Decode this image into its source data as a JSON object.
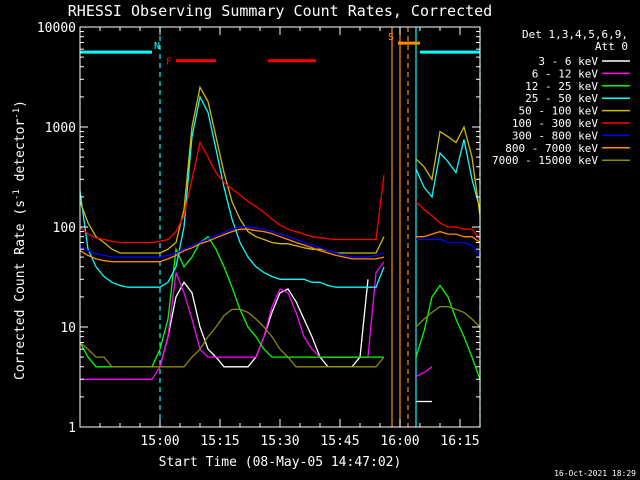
{
  "chart_data": {
    "type": "line",
    "title": "RHESSI Observing Summary Count Rates, Corrected",
    "xlabel": "Start Time (08-May-05 14:47:02)",
    "ylabel_main": "Corrected Count Rate (s",
    "ylabel_sup1": "-1",
    "ylabel_mid": " detector",
    "ylabel_sup2": "-1",
    "ylabel_end": ")",
    "yscale": "log",
    "ylim": [
      1,
      10000
    ],
    "xlim_min": [
      -10,
      90
    ],
    "x_unit": "minutes after 14:50",
    "xticks": [
      {
        "x": 10,
        "label": "15:00"
      },
      {
        "x": 25,
        "label": "15:15"
      },
      {
        "x": 40,
        "label": "15:30"
      },
      {
        "x": 55,
        "label": "15:45"
      },
      {
        "x": 70,
        "label": "16:00"
      },
      {
        "x": 85,
        "label": "16:15"
      }
    ],
    "yticks": [
      {
        "y": 1,
        "label": "1"
      },
      {
        "y": 10,
        "label": "10"
      },
      {
        "y": 100,
        "label": "100"
      },
      {
        "y": 1000,
        "label": "1000"
      },
      {
        "y": 10000,
        "label": "10000"
      }
    ],
    "legend_header": [
      "Det 1,3,4,5,6,9,",
      "Att 0"
    ],
    "legend_placement": "top-right outside",
    "footer_date": "16-Oct-2021 18:29",
    "flags": [
      {
        "name": "N",
        "color": "#00ffff",
        "label": "N",
        "segments": [
          [
            -10,
            8
          ],
          [
            75,
            90
          ]
        ],
        "y": 5600
      },
      {
        "name": "F",
        "color": "#ff0000",
        "label": "F",
        "segments": [
          [
            14,
            24
          ],
          [
            37,
            49
          ]
        ],
        "y": 4600
      },
      {
        "name": "S",
        "color": "#ff8c00",
        "label": "S",
        "segments": [
          [
            69.5,
            75
          ]
        ],
        "y": 6900
      }
    ],
    "vlines": [
      {
        "x": 10,
        "color": "#00ffff",
        "style": "dashed"
      },
      {
        "x": 68,
        "color": "#ff8c00",
        "style": "solid"
      },
      {
        "x": 70,
        "color": "#ff8c00",
        "style": "solid"
      },
      {
        "x": 72,
        "color": "#ff8c00",
        "style": "dashed"
      },
      {
        "x": 74,
        "color": "#00ffff",
        "style": "solid"
      },
      {
        "x": 90,
        "color": "#00ffff",
        "style": "dashed"
      }
    ],
    "series": [
      {
        "name": "3 - 6 keV",
        "color": "#ffffff",
        "x": [
          74,
          76,
          78
        ],
        "y": [
          1.8,
          1.8,
          1.8
        ],
        "x2": [
          10,
          12,
          14,
          16,
          18,
          20,
          22,
          24,
          26,
          28,
          30,
          32,
          34,
          36,
          38,
          40,
          42,
          44,
          46,
          48,
          50,
          52,
          54,
          56,
          58,
          60,
          62,
          64,
          66
        ],
        "y2": [
          4,
          8,
          20,
          28,
          22,
          10,
          6,
          5,
          4,
          4,
          4,
          4,
          5,
          8,
          14,
          22,
          24,
          18,
          12,
          8,
          5,
          4,
          4,
          4,
          4,
          5,
          30,
          0,
          0
        ]
      },
      {
        "name": "6 - 12 keV",
        "color": "#ff00ff",
        "x": [
          -10,
          -8,
          -6,
          -4,
          -2,
          0,
          2,
          4,
          6,
          8,
          10,
          12,
          14,
          16,
          18,
          20,
          22,
          24,
          26,
          28,
          30,
          32,
          34,
          36,
          38,
          40,
          42,
          44,
          46,
          48,
          50,
          52,
          54,
          56,
          58,
          60,
          62,
          64,
          66
        ],
        "y": [
          3,
          3,
          3,
          3,
          3,
          3,
          3,
          3,
          3,
          3,
          4,
          8,
          35,
          22,
          12,
          6,
          5,
          5,
          5,
          5,
          5,
          5,
          5,
          8,
          16,
          24,
          22,
          14,
          8,
          6,
          5,
          5,
          5,
          5,
          5,
          5,
          5,
          35,
          45
        ],
        "x2": [
          74,
          76,
          78
        ],
        "y2": [
          3.2,
          3.5,
          4
        ]
      },
      {
        "name": "12 - 25 keV",
        "color": "#00ff00",
        "x": [
          -10,
          -8,
          -6,
          -4,
          -2,
          0,
          2,
          4,
          6,
          8,
          10,
          12,
          14,
          16,
          18,
          20,
          22,
          24,
          26,
          28,
          30,
          32,
          34,
          36,
          38,
          40,
          42,
          44,
          46,
          48,
          50,
          52,
          54,
          56,
          58,
          60,
          62,
          64,
          66
        ],
        "y": [
          7,
          5,
          4,
          4,
          4,
          4,
          4,
          4,
          4,
          4,
          6,
          12,
          60,
          40,
          50,
          70,
          80,
          60,
          40,
          25,
          15,
          10,
          8,
          6,
          5,
          5,
          5,
          5,
          5,
          5,
          5,
          5,
          5,
          5,
          5,
          5,
          5,
          5,
          5
        ],
        "x2": [
          74,
          76,
          78,
          80,
          82,
          84,
          86,
          88,
          90
        ],
        "y2": [
          5,
          9,
          20,
          26,
          20,
          12,
          8,
          5,
          3
        ]
      },
      {
        "name": "25 - 50 keV",
        "color": "#00ffff",
        "x": [
          -10,
          -8,
          -6,
          -4,
          -2,
          0,
          2,
          4,
          6,
          8,
          10,
          12,
          14,
          16,
          18,
          20,
          22,
          24,
          26,
          28,
          30,
          32,
          34,
          36,
          38,
          40,
          42,
          44,
          46,
          48,
          50,
          52,
          54,
          56,
          58,
          60,
          62,
          64,
          66
        ],
        "y": [
          230,
          60,
          40,
          32,
          28,
          26,
          25,
          25,
          25,
          25,
          25,
          28,
          40,
          100,
          800,
          2000,
          1400,
          600,
          250,
          120,
          70,
          50,
          40,
          35,
          32,
          30,
          30,
          30,
          30,
          28,
          28,
          26,
          25,
          25,
          25,
          25,
          25,
          25,
          40
        ],
        "x2": [
          74,
          76,
          78,
          80,
          82,
          84,
          86,
          88,
          90
        ],
        "y2": [
          380,
          250,
          200,
          550,
          450,
          350,
          750,
          300,
          150
        ]
      },
      {
        "name": "50 - 100 keV",
        "color": "#ccbb00",
        "x": [
          -10,
          -8,
          -6,
          -4,
          -2,
          0,
          2,
          4,
          6,
          8,
          10,
          12,
          14,
          16,
          18,
          20,
          22,
          24,
          26,
          28,
          30,
          32,
          34,
          36,
          38,
          40,
          42,
          44,
          46,
          48,
          50,
          52,
          54,
          56,
          58,
          60,
          62,
          64,
          66
        ],
        "y": [
          180,
          110,
          80,
          70,
          60,
          55,
          55,
          55,
          55,
          55,
          55,
          60,
          70,
          150,
          1000,
          2500,
          1800,
          800,
          350,
          180,
          120,
          90,
          80,
          75,
          70,
          68,
          68,
          65,
          62,
          60,
          60,
          58,
          55,
          55,
          55,
          55,
          55,
          55,
          80
        ],
        "x2": [
          74,
          76,
          78,
          80,
          82,
          84,
          86,
          88,
          90
        ],
        "y2": [
          480,
          400,
          300,
          900,
          800,
          700,
          1000,
          500,
          130
        ]
      },
      {
        "name": "100 - 300 keV",
        "color": "#ff0000",
        "x": [
          -10,
          -8,
          -6,
          -4,
          -2,
          0,
          2,
          4,
          6,
          8,
          10,
          12,
          14,
          16,
          18,
          20,
          22,
          24,
          26,
          28,
          30,
          32,
          34,
          36,
          38,
          40,
          42,
          44,
          46,
          48,
          50,
          52,
          54,
          56,
          58,
          60,
          62,
          64,
          66
        ],
        "y": [
          100,
          85,
          78,
          75,
          72,
          70,
          70,
          70,
          70,
          70,
          72,
          75,
          90,
          130,
          300,
          700,
          500,
          350,
          280,
          240,
          210,
          180,
          160,
          140,
          120,
          105,
          95,
          90,
          85,
          80,
          78,
          76,
          75,
          75,
          75,
          75,
          75,
          75,
          330
        ],
        "x2": [
          74,
          76,
          78,
          80,
          82,
          84,
          86,
          88,
          90
        ],
        "y2": [
          180,
          150,
          130,
          110,
          100,
          100,
          95,
          95,
          75
        ]
      },
      {
        "name": "300 - 800 keV",
        "color": "#0000ff",
        "x": [
          -10,
          -8,
          -6,
          -4,
          -2,
          0,
          2,
          4,
          6,
          8,
          10,
          12,
          14,
          16,
          18,
          20,
          22,
          24,
          26,
          28,
          30,
          32,
          34,
          36,
          38,
          40,
          42,
          44,
          46,
          48,
          50,
          52,
          54,
          56,
          58,
          60,
          62,
          64,
          66
        ],
        "y": [
          65,
          58,
          54,
          52,
          50,
          50,
          50,
          50,
          50,
          50,
          50,
          52,
          55,
          60,
          65,
          70,
          76,
          82,
          88,
          95,
          100,
          100,
          98,
          95,
          90,
          85,
          80,
          75,
          70,
          66,
          62,
          58,
          55,
          52,
          50,
          50,
          50,
          52,
          55
        ],
        "x2": [
          74,
          76,
          78,
          80,
          82,
          84,
          86,
          88,
          90
        ],
        "y2": [
          75,
          75,
          75,
          75,
          70,
          70,
          70,
          65,
          50
        ]
      },
      {
        "name": "800 - 7000 keV",
        "color": "#ff8c00",
        "x": [
          -10,
          -8,
          -6,
          -4,
          -2,
          0,
          2,
          4,
          6,
          8,
          10,
          12,
          14,
          16,
          18,
          20,
          22,
          24,
          26,
          28,
          30,
          32,
          34,
          36,
          38,
          40,
          42,
          44,
          46,
          48,
          50,
          52,
          54,
          56,
          58,
          60,
          62,
          64,
          66
        ],
        "y": [
          58,
          52,
          48,
          46,
          45,
          45,
          45,
          45,
          45,
          45,
          45,
          48,
          52,
          58,
          62,
          68,
          72,
          78,
          84,
          90,
          95,
          95,
          92,
          90,
          86,
          80,
          75,
          70,
          66,
          62,
          58,
          55,
          52,
          50,
          48,
          48,
          48,
          48,
          50
        ],
        "x2": [
          74,
          76,
          78,
          80,
          82,
          84,
          86,
          88,
          90
        ],
        "y2": [
          80,
          80,
          85,
          90,
          85,
          85,
          80,
          80,
          70
        ]
      },
      {
        "name": "7000 - 15000 keV",
        "color": "#8b8b00",
        "x": [
          -10,
          -8,
          -6,
          -4,
          -2,
          0,
          2,
          4,
          6,
          8,
          10,
          12,
          14,
          16,
          18,
          20,
          22,
          24,
          26,
          28,
          30,
          32,
          34,
          36,
          38,
          40,
          42,
          44,
          46,
          48,
          50,
          52,
          54,
          56,
          58,
          60,
          62,
          64,
          66
        ],
        "y": [
          7,
          6,
          5,
          5,
          4,
          4,
          4,
          4,
          4,
          4,
          4,
          4,
          4,
          4,
          5,
          6,
          8,
          10,
          13,
          15,
          15,
          14,
          12,
          10,
          8,
          6,
          5,
          4,
          4,
          4,
          4,
          4,
          4,
          4,
          4,
          4,
          4,
          4,
          5
        ],
        "x2": [
          74,
          76,
          78,
          80,
          82,
          84,
          86,
          88,
          90
        ],
        "y2": [
          10,
          12,
          14,
          16,
          16,
          15,
          14,
          12,
          10
        ]
      }
    ]
  }
}
